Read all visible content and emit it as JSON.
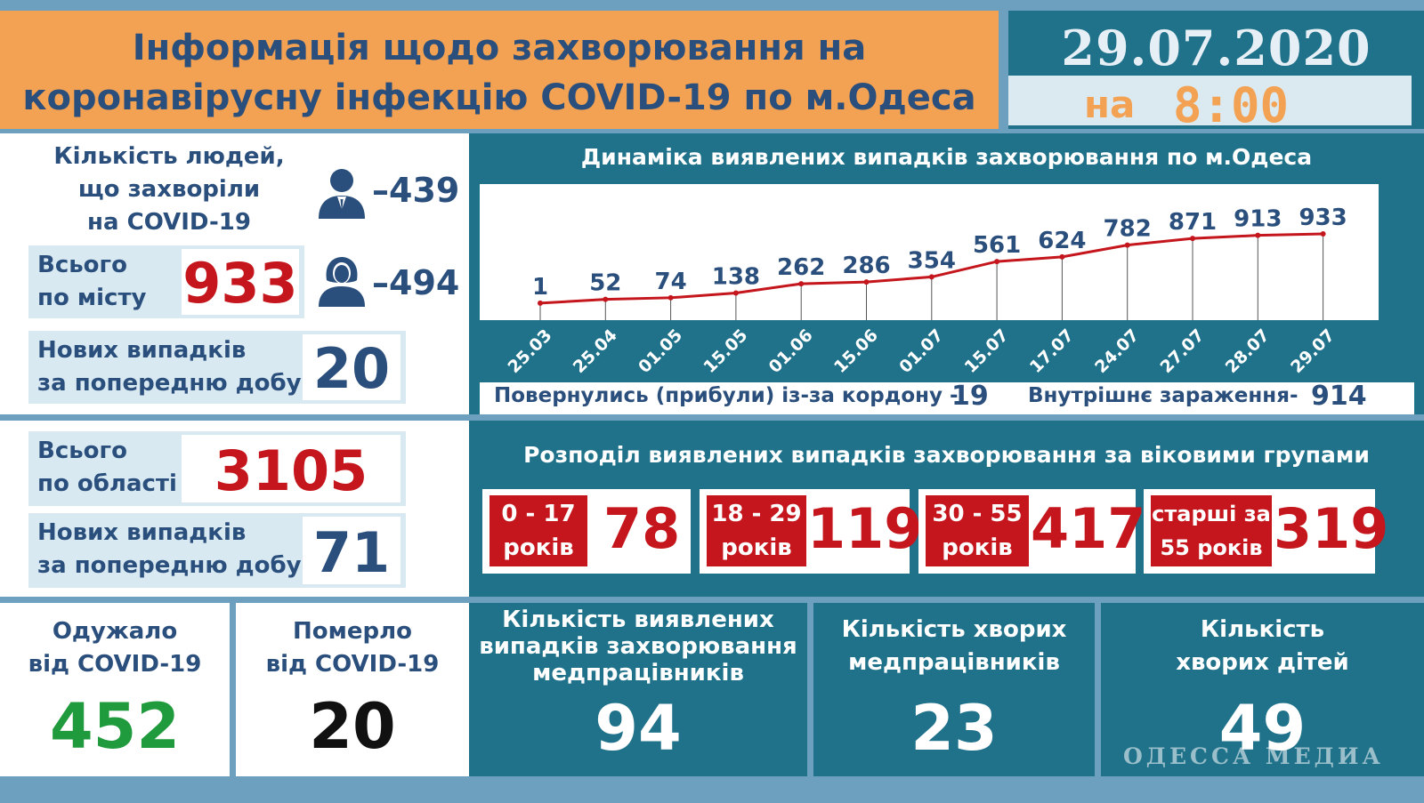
{
  "header": {
    "title_line1": "Інформація щодо захворювання на",
    "title_line2": "коронавірусну інфекцію COVID-19 по м.Одеса",
    "date": "29.07.2020",
    "time_prefix": "на",
    "time": "8:00"
  },
  "city": {
    "people_label_1": "Кількість людей,",
    "people_label_2": "що захворіли",
    "people_label_3": "на COVID-19",
    "men": "–439",
    "women": "–494",
    "total_label_1": "Всього",
    "total_label_2": "по місту",
    "total_value": "933",
    "new_label_1": "Нових випадків",
    "new_label_2": "за попередню добу",
    "new_value": "20"
  },
  "chart_data": {
    "type": "line",
    "title": "Динаміка виявлених випадків захворювання по м.Одеса",
    "categories": [
      "25.03",
      "25.04",
      "01.05",
      "15.05",
      "01.06",
      "15.06",
      "01.07",
      "15.07",
      "17.07",
      "24.07",
      "27.07",
      "28.07",
      "29.07"
    ],
    "values": [
      1,
      52,
      74,
      138,
      262,
      286,
      354,
      561,
      624,
      782,
      871,
      913,
      933
    ],
    "color": "#c4161c"
  },
  "origin": {
    "returned_label": "Повернулись (прибули) із-за кордону -",
    "returned_value": "19",
    "internal_label": "Внутрішнє зараження",
    "internal_dash": "-",
    "internal_value": "914"
  },
  "region": {
    "total_label_1": "Всього",
    "total_label_2": "по області",
    "total_value": "3105",
    "new_label_1": "Нових випадків",
    "new_label_2": "за попередню добу",
    "new_value": "71"
  },
  "age": {
    "title": "Розподіл виявлених випадків захворювання за віковими групами",
    "groups": [
      {
        "line1": "0 - 17",
        "line2": "років",
        "value": "78"
      },
      {
        "line1": "18 - 29",
        "line2": "років",
        "value": "119"
      },
      {
        "line1": "30 - 55",
        "line2": "років",
        "value": "417"
      },
      {
        "line1": "старші за",
        "line2": "55 років",
        "value": "319"
      }
    ]
  },
  "bottom": {
    "recovered_label_1": "Одужало",
    "recovered_label_2": "від COVID-19",
    "recovered_value": "452",
    "died_label_1": "Померло",
    "died_label_2": "від COVID-19",
    "died_value": "20",
    "medics_cases_label_1": "Кількість виявлених",
    "medics_cases_label_2": "випадків захворювання",
    "medics_cases_label_3": "медпрацівників",
    "medics_cases_value": "94",
    "medics_sick_label_1": "Кількість хворих",
    "medics_sick_label_2": "медпрацівників",
    "medics_sick_value": "23",
    "children_label_1": "Кількість",
    "children_label_2": "хворих дітей",
    "children_value": "49"
  },
  "watermark": "ОДЕССА МЕДИА",
  "colors": {
    "navy": "#2b4f7c",
    "red": "#c4161c",
    "teal": "#1f728a",
    "orange": "#f3a152",
    "green": "#1f9a3c"
  }
}
